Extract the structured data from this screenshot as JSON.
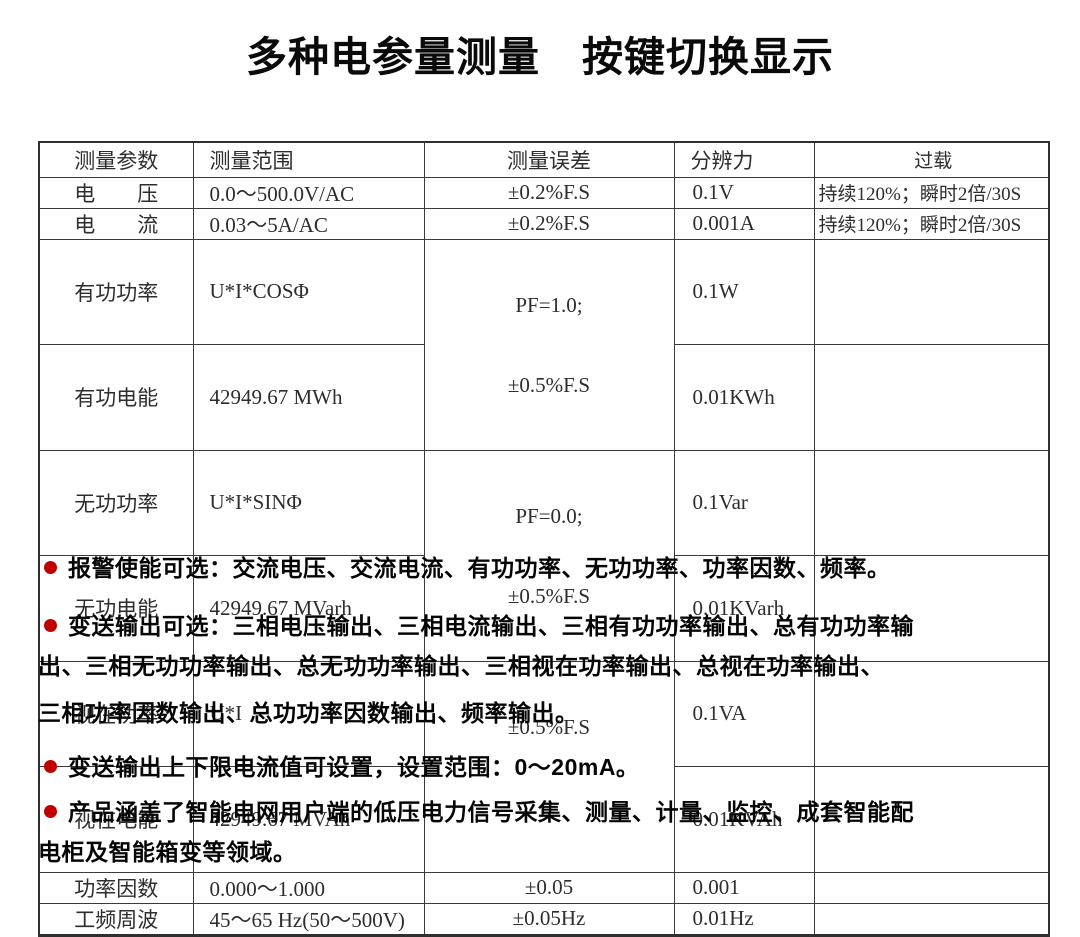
{
  "page": {
    "title": "多种电参量测量　按键切换显示"
  },
  "colors": {
    "accent_bullet_red": "#c00000",
    "table_border": "#3a3a3a",
    "table_text": "#2d2d2d",
    "body_text": "#050505"
  },
  "table": {
    "headers": {
      "param": "测量参数",
      "range": "测量范围",
      "error": "测量误差",
      "resolution": "分辨力",
      "overload": "过载"
    },
    "rows": [
      {
        "param": "电　　压",
        "range": "0.0～500.0V/AC",
        "error": "±0.2%F.S",
        "resolution": "0.1V",
        "overload": "持续120%；瞬时2倍/30S"
      },
      {
        "param": "电　　流",
        "range": "0.03～5A/AC",
        "error": "±0.2%F.S",
        "resolution": "0.001A",
        "overload": "持续120%；瞬时2倍/30S"
      },
      {
        "param": "有功功率",
        "range": "U*I*COSΦ",
        "error": "PF=1.0;",
        "resolution": "0.1W",
        "overload": ""
      },
      {
        "param": "有功电能",
        "range": "42949.67 MWh",
        "error": "±0.5%F.S",
        "resolution": "0.01KWh",
        "overload": ""
      },
      {
        "param": "无功功率",
        "range": "U*I*SINΦ",
        "error": "PF=0.0;",
        "resolution": "0.1Var",
        "overload": ""
      },
      {
        "param": "无功电能",
        "range": "42949.67 MVarh",
        "error": "±0.5%F.S",
        "resolution": "0.01KVarh",
        "overload": ""
      },
      {
        "param": "视在功率",
        "range": "U*I",
        "error": "±0.5%F.S",
        "resolution": "0.1VA",
        "overload": ""
      },
      {
        "param": "视在电能",
        "range": "42949.67 MVAh",
        "error": "",
        "resolution": "0.01KVAh",
        "overload": ""
      },
      {
        "param": "功率因数",
        "range": "0.000～1.000",
        "error": "±0.05",
        "resolution": "0.001",
        "overload": ""
      },
      {
        "param": "工频周波",
        "range": "45～65 Hz(50～500V)",
        "error": "±0.05Hz",
        "resolution": "0.01Hz",
        "overload": ""
      }
    ]
  },
  "features": [
    {
      "lines": [
        "报警使能可选：交流电压、交流电流、有功功率、无功功率、功率因数、频率。"
      ]
    },
    {
      "lines": [
        "变送输出可选：三相电压输出、三相电流输出、三相有功功率输出、总有功功率输",
        "出、三相无功功率输出、总无功功率输出、三相视在功率输出、总视在功率输出、",
        "三相功率因数输出、总功功率因数输出、频率输出。"
      ]
    },
    {
      "lines": [
        "变送输出上下限电流值可设置，设置范围：0～20mA。"
      ]
    },
    {
      "lines": [
        "产品涵盖了智能电网用户端的低压电力信号采集、测量、计量、监控、成套智能配",
        "电柜及智能箱变等领域。"
      ]
    }
  ]
}
